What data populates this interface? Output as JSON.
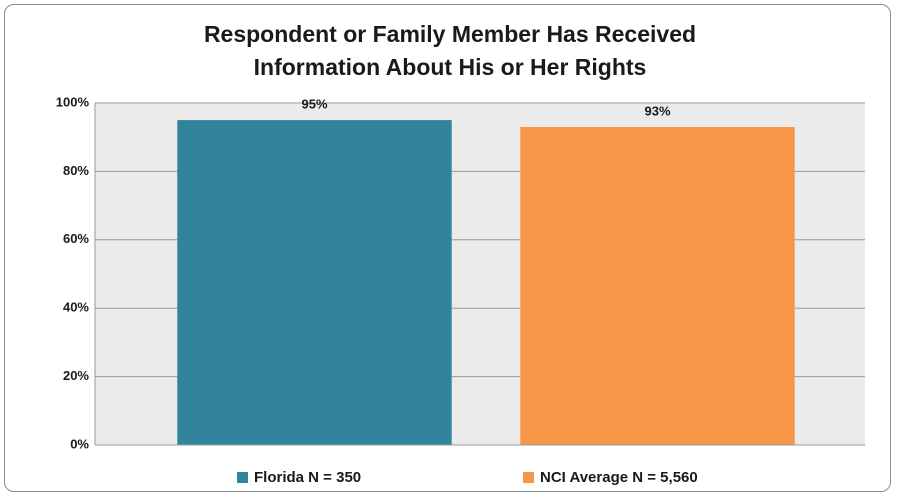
{
  "chart_data": {
    "type": "bar",
    "title": "Respondent or Family Member Has Received Information About His or Her Rights",
    "categories": [
      "Florida N = 350",
      "NCI Average N = 5,560"
    ],
    "values": [
      95,
      93
    ],
    "value_labels": [
      "95%",
      "93%"
    ],
    "colors": [
      "#31849b",
      "#f79646"
    ],
    "ylim": [
      0,
      100
    ],
    "yticks": [
      {
        "value": 0,
        "label": "0%"
      },
      {
        "value": 20,
        "label": "20%"
      },
      {
        "value": 40,
        "label": "40%"
      },
      {
        "value": 60,
        "label": "60%"
      },
      {
        "value": 80,
        "label": "80%"
      },
      {
        "value": 100,
        "label": "100%"
      }
    ],
    "grid": true,
    "legend": "bottom"
  }
}
